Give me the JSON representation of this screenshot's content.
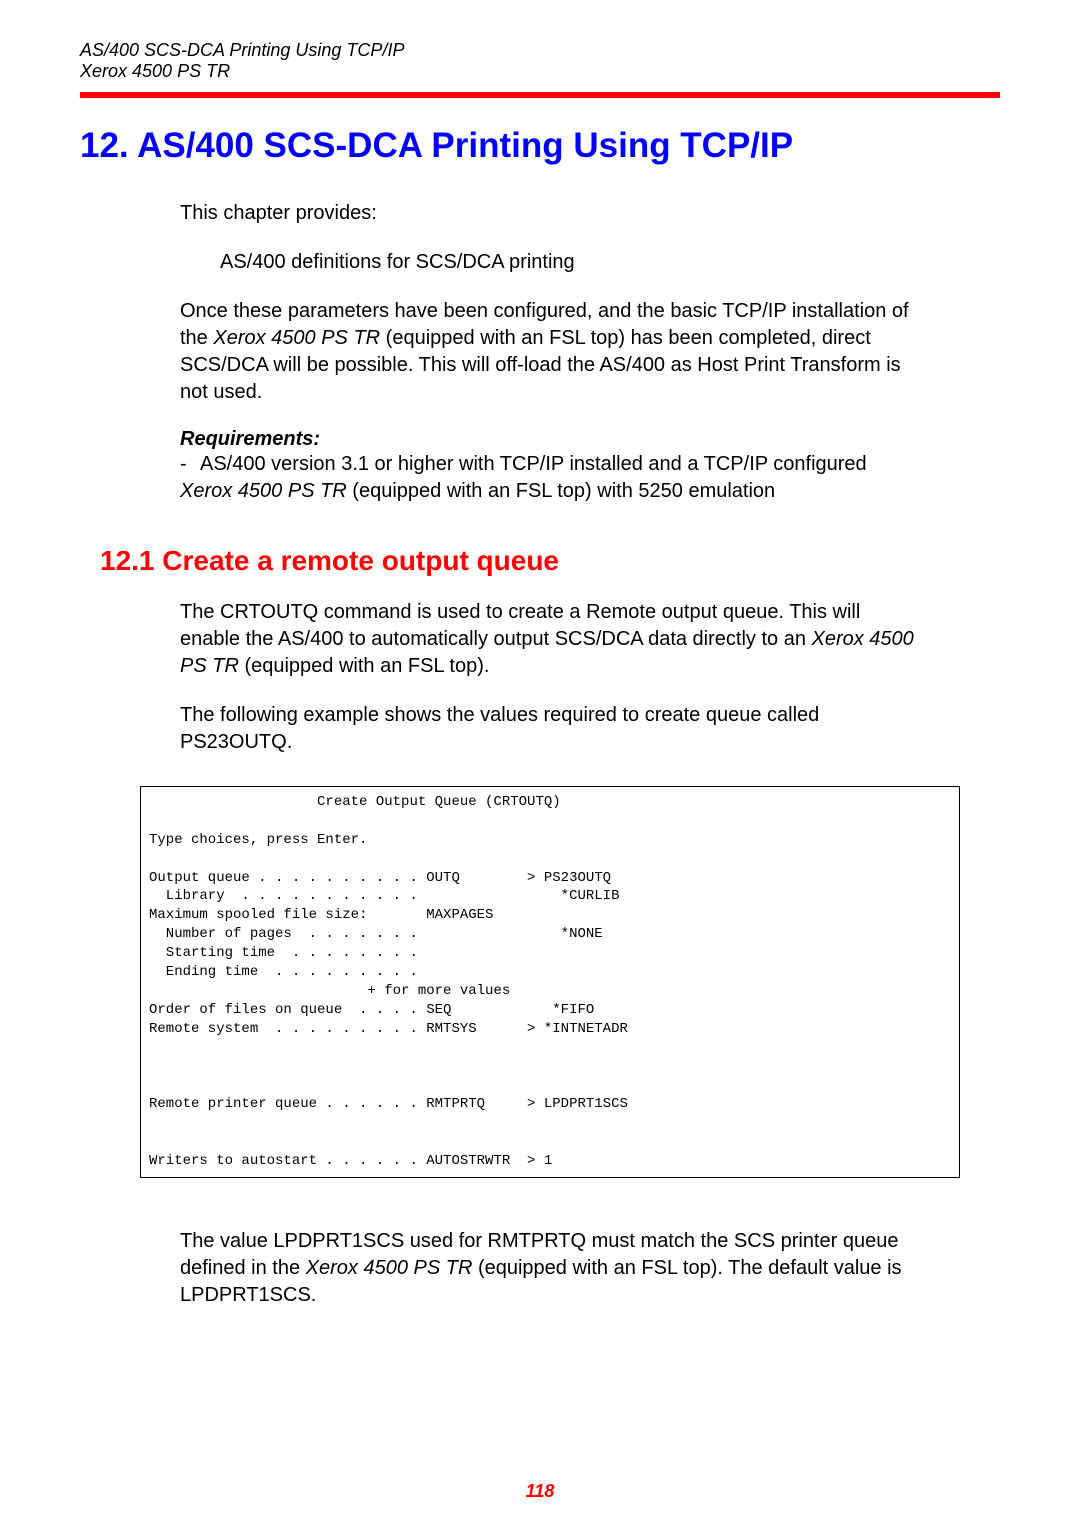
{
  "header": {
    "line1": "AS/400 SCS-DCA Printing Using TCP/IP",
    "line2": "Xerox 4500 PS TR"
  },
  "chapter_title": "12. AS/400 SCS-DCA Printing Using TCP/IP",
  "intro1": "This chapter provides:",
  "intro_bullet": "AS/400 definitions for SCS/DCA printing",
  "intro2_a": "Once these parameters have been configured, and the basic TCP/IP installation of the ",
  "product_italic": "Xerox 4500 PS TR",
  "intro2_b": " (equipped with an FSL top)  has been completed, direct SCS/DCA will be possible. This will off-load the AS/400 as Host Print Transform is not used.",
  "req_heading": "Requirements:",
  "req_dash": "-",
  "req1_a": "AS/400 version 3.1 or higher with TCP/IP installed and a TCP/IP configured ",
  "req1_b": " (equipped with an FSL top) with 5250 emulation",
  "section_title": "12.1 Create a remote output queue",
  "sec_para1_a": "The CRTOUTQ command is used to create a Remote output queue. This will enable the AS/400 to automatically output SCS/DCA data directly to an ",
  "sec_para1_b": " (equipped with an FSL top).",
  "sec_para2": "The following example shows the values required to create queue called PS23OUTQ.",
  "terminal": "                    Create Output Queue (CRTOUTQ)\n\nType choices, press Enter.\n\nOutput queue . . . . . . . . . . OUTQ        > PS23OUTQ\n  Library  . . . . . . . . . . .                 *CURLIB\nMaximum spooled file size:       MAXPAGES\n  Number of pages  . . . . . . .                 *NONE\n  Starting time  . . . . . . . .\n  Ending time  . . . . . . . . .\n                          + for more values\nOrder of files on queue  . . . . SEQ            *FIFO\nRemote system  . . . . . . . . . RMTSYS      > *INTNETADR\n\n\n\nRemote printer queue . . . . . . RMTPRTQ     > LPDPRT1SCS\n\n\nWriters to autostart . . . . . . AUTOSTRWTR  > 1",
  "sec_para3_a": "The value LPDPRT1SCS used for RMTPRTQ must match the SCS printer queue defined in the ",
  "sec_para3_b": " (equipped with an FSL top). The default value is LPDPRT1SCS.",
  "page_number": "118"
}
